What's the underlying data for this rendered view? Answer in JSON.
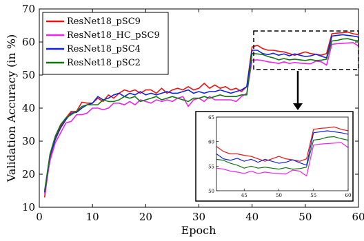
{
  "chart_data": {
    "type": "line",
    "xlabel": "Epoch",
    "ylabel": "Validation Accuracy (in %)",
    "xlim": [
      0,
      60
    ],
    "ylim": [
      10,
      70
    ],
    "xticks": [
      0,
      10,
      20,
      30,
      40,
      50,
      60
    ],
    "yticks": [
      10,
      20,
      30,
      40,
      50,
      60,
      70
    ],
    "legend_position": "top-left",
    "grid": false,
    "x": [
      1,
      2,
      3,
      4,
      5,
      6,
      7,
      8,
      9,
      10,
      11,
      12,
      13,
      14,
      15,
      16,
      17,
      18,
      19,
      20,
      21,
      22,
      23,
      24,
      25,
      26,
      27,
      28,
      29,
      30,
      31,
      32,
      33,
      34,
      35,
      36,
      37,
      38,
      39,
      40,
      41,
      42,
      43,
      44,
      45,
      46,
      47,
      48,
      49,
      50,
      51,
      52,
      53,
      54,
      55,
      56,
      57,
      58,
      59,
      60
    ],
    "series": [
      {
        "name": "ResNet18_pSC9",
        "color": "#ee1111",
        "values": [
          13.0,
          25.0,
          31.0,
          34.5,
          37.0,
          39.0,
          39.0,
          41.8,
          41.5,
          41.5,
          43.0,
          42.0,
          44.0,
          43.0,
          44.5,
          45.5,
          45.0,
          45.5,
          44.5,
          45.5,
          45.5,
          44.5,
          46.0,
          44.5,
          45.5,
          46.0,
          45.5,
          46.5,
          45.5,
          46.0,
          47.5,
          46.0,
          47.0,
          46.0,
          46.5,
          45.5,
          46.0,
          45.0,
          46.5,
          58.5,
          59.0,
          58.0,
          57.5,
          57.5,
          57.2,
          57.0,
          56.5,
          56.0,
          56.5,
          57.0,
          56.5,
          56.3,
          56.0,
          56.5,
          62.5,
          62.7,
          62.8,
          63.0,
          62.5,
          62.2
        ]
      },
      {
        "name": "ResNet18_HC_pSC9",
        "color": "#ee22ee",
        "values": [
          14.0,
          24.0,
          29.5,
          32.5,
          35.5,
          36.0,
          38.0,
          38.0,
          38.5,
          40.0,
          40.0,
          39.5,
          40.0,
          41.5,
          41.5,
          41.0,
          42.0,
          41.0,
          42.5,
          42.0,
          41.5,
          42.5,
          42.0,
          42.5,
          42.0,
          43.0,
          43.5,
          40.5,
          42.5,
          43.0,
          42.0,
          43.5,
          42.5,
          42.5,
          42.5,
          42.5,
          42.0,
          43.5,
          44.5,
          54.5,
          54.6,
          54.4,
          54.0,
          53.8,
          53.5,
          54.0,
          53.5,
          53.8,
          53.6,
          53.5,
          53.4,
          54.2,
          54.0,
          53.0,
          59.3,
          59.5,
          59.6,
          59.7,
          59.8,
          58.8
        ]
      },
      {
        "name": "ResNet18_pSC4",
        "color": "#1122dd",
        "values": [
          14.5,
          25.5,
          30.5,
          34.0,
          36.5,
          38.5,
          38.7,
          40.0,
          41.0,
          41.5,
          43.5,
          42.5,
          43.0,
          44.0,
          44.5,
          43.5,
          44.5,
          44.0,
          45.0,
          44.0,
          44.5,
          44.0,
          44.5,
          45.0,
          44.5,
          44.5,
          45.0,
          45.5,
          44.5,
          45.0,
          44.5,
          45.0,
          45.0,
          45.5,
          45.0,
          44.5,
          45.0,
          45.5,
          46.5,
          57.5,
          57.5,
          56.5,
          56.2,
          56.6,
          56.0,
          56.4,
          55.8,
          56.4,
          56.0,
          55.6,
          55.8,
          56.3,
          55.7,
          55.2,
          61.8,
          62.0,
          62.2,
          62.0,
          61.8,
          61.5
        ]
      },
      {
        "name": "ResNet18_pSC2",
        "color": "#117711",
        "values": [
          15.0,
          26.0,
          31.5,
          35.0,
          37.0,
          38.0,
          39.0,
          40.5,
          41.0,
          41.0,
          41.0,
          42.5,
          42.0,
          42.0,
          42.5,
          43.5,
          43.0,
          43.5,
          42.0,
          42.5,
          43.0,
          43.5,
          42.5,
          43.0,
          43.5,
          43.0,
          42.5,
          42.0,
          43.0,
          43.0,
          43.5,
          43.0,
          43.5,
          44.0,
          43.5,
          43.5,
          43.5,
          44.0,
          44.0,
          56.5,
          56.4,
          56.2,
          55.6,
          55.2,
          54.6,
          55.0,
          54.6,
          54.8,
          54.6,
          54.4,
          54.7,
          54.4,
          54.5,
          54.8,
          60.3,
          60.5,
          60.9,
          61.0,
          60.6,
          60.3
        ]
      }
    ],
    "inset": {
      "xlim": [
        41,
        60
      ],
      "ylim": [
        50,
        65
      ],
      "xticks": [
        45,
        50,
        55,
        60
      ],
      "yticks": [
        50,
        55,
        60,
        65
      ]
    }
  }
}
